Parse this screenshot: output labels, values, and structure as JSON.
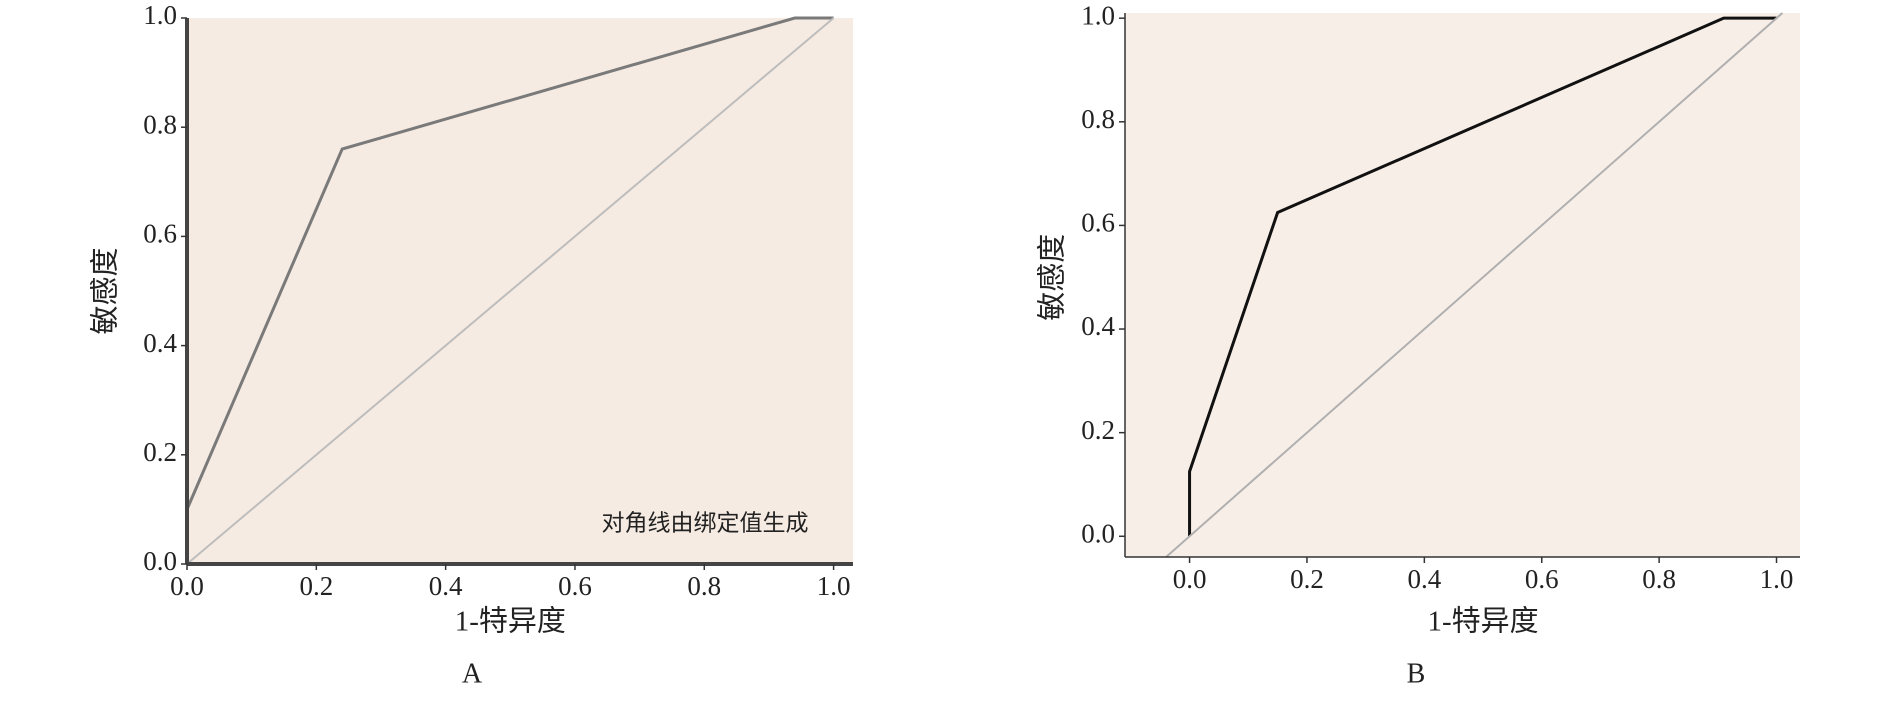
{
  "chart_data": [
    {
      "type": "line",
      "xlabel": "1-特异度",
      "ylabel": "敏感度",
      "caption": "A",
      "annotation": "对角线由绑定值生成",
      "xlim": [
        0,
        1.03
      ],
      "ylim": [
        0,
        1.0
      ],
      "xticks": [
        {
          "value": 0,
          "label": "0.0"
        },
        0.2,
        0.4,
        0.6,
        0.8,
        {
          "value": 1,
          "label": "1.0"
        }
      ],
      "yticks": [
        {
          "value": 0,
          "label": "0.0"
        },
        0.2,
        0.4,
        0.6,
        0.8,
        {
          "value": 1,
          "label": "1.0"
        }
      ],
      "background": "#f6ebe2",
      "series": [
        {
          "color": "#7a7a7a",
          "x": [
            0,
            0.24,
            0.94,
            1.0
          ],
          "values": [
            0.1,
            0.76,
            1.0,
            1.0
          ]
        },
        {
          "color": "#bdbdbd",
          "x": [
            0,
            1
          ],
          "values": [
            0,
            1
          ]
        }
      ]
    },
    {
      "type": "line",
      "xlabel": "1-特异度",
      "ylabel": "敏感度",
      "caption": "B",
      "xlim": [
        -0.11,
        1.04
      ],
      "ylim": [
        -0.04,
        1.01
      ],
      "xticks": [
        {
          "value": 0,
          "label": "0.0"
        },
        0.2,
        0.4,
        0.6,
        0.8,
        {
          "value": 1,
          "label": "1.0"
        }
      ],
      "yticks": [
        {
          "value": 0,
          "label": "0.0"
        },
        0.2,
        0.4,
        0.6,
        0.8,
        {
          "value": 1,
          "label": "1.0"
        }
      ],
      "background": "#f8eee8",
      "series": [
        {
          "color": "#111111",
          "x": [
            0,
            0,
            0.15,
            0.91,
            1.0
          ],
          "values": [
            0,
            0.125,
            0.625,
            1.0,
            1.0
          ]
        },
        {
          "color": "#b0b0b0",
          "x": [
            -0.04,
            1.01
          ],
          "values": [
            -0.04,
            1.01
          ]
        }
      ]
    }
  ]
}
